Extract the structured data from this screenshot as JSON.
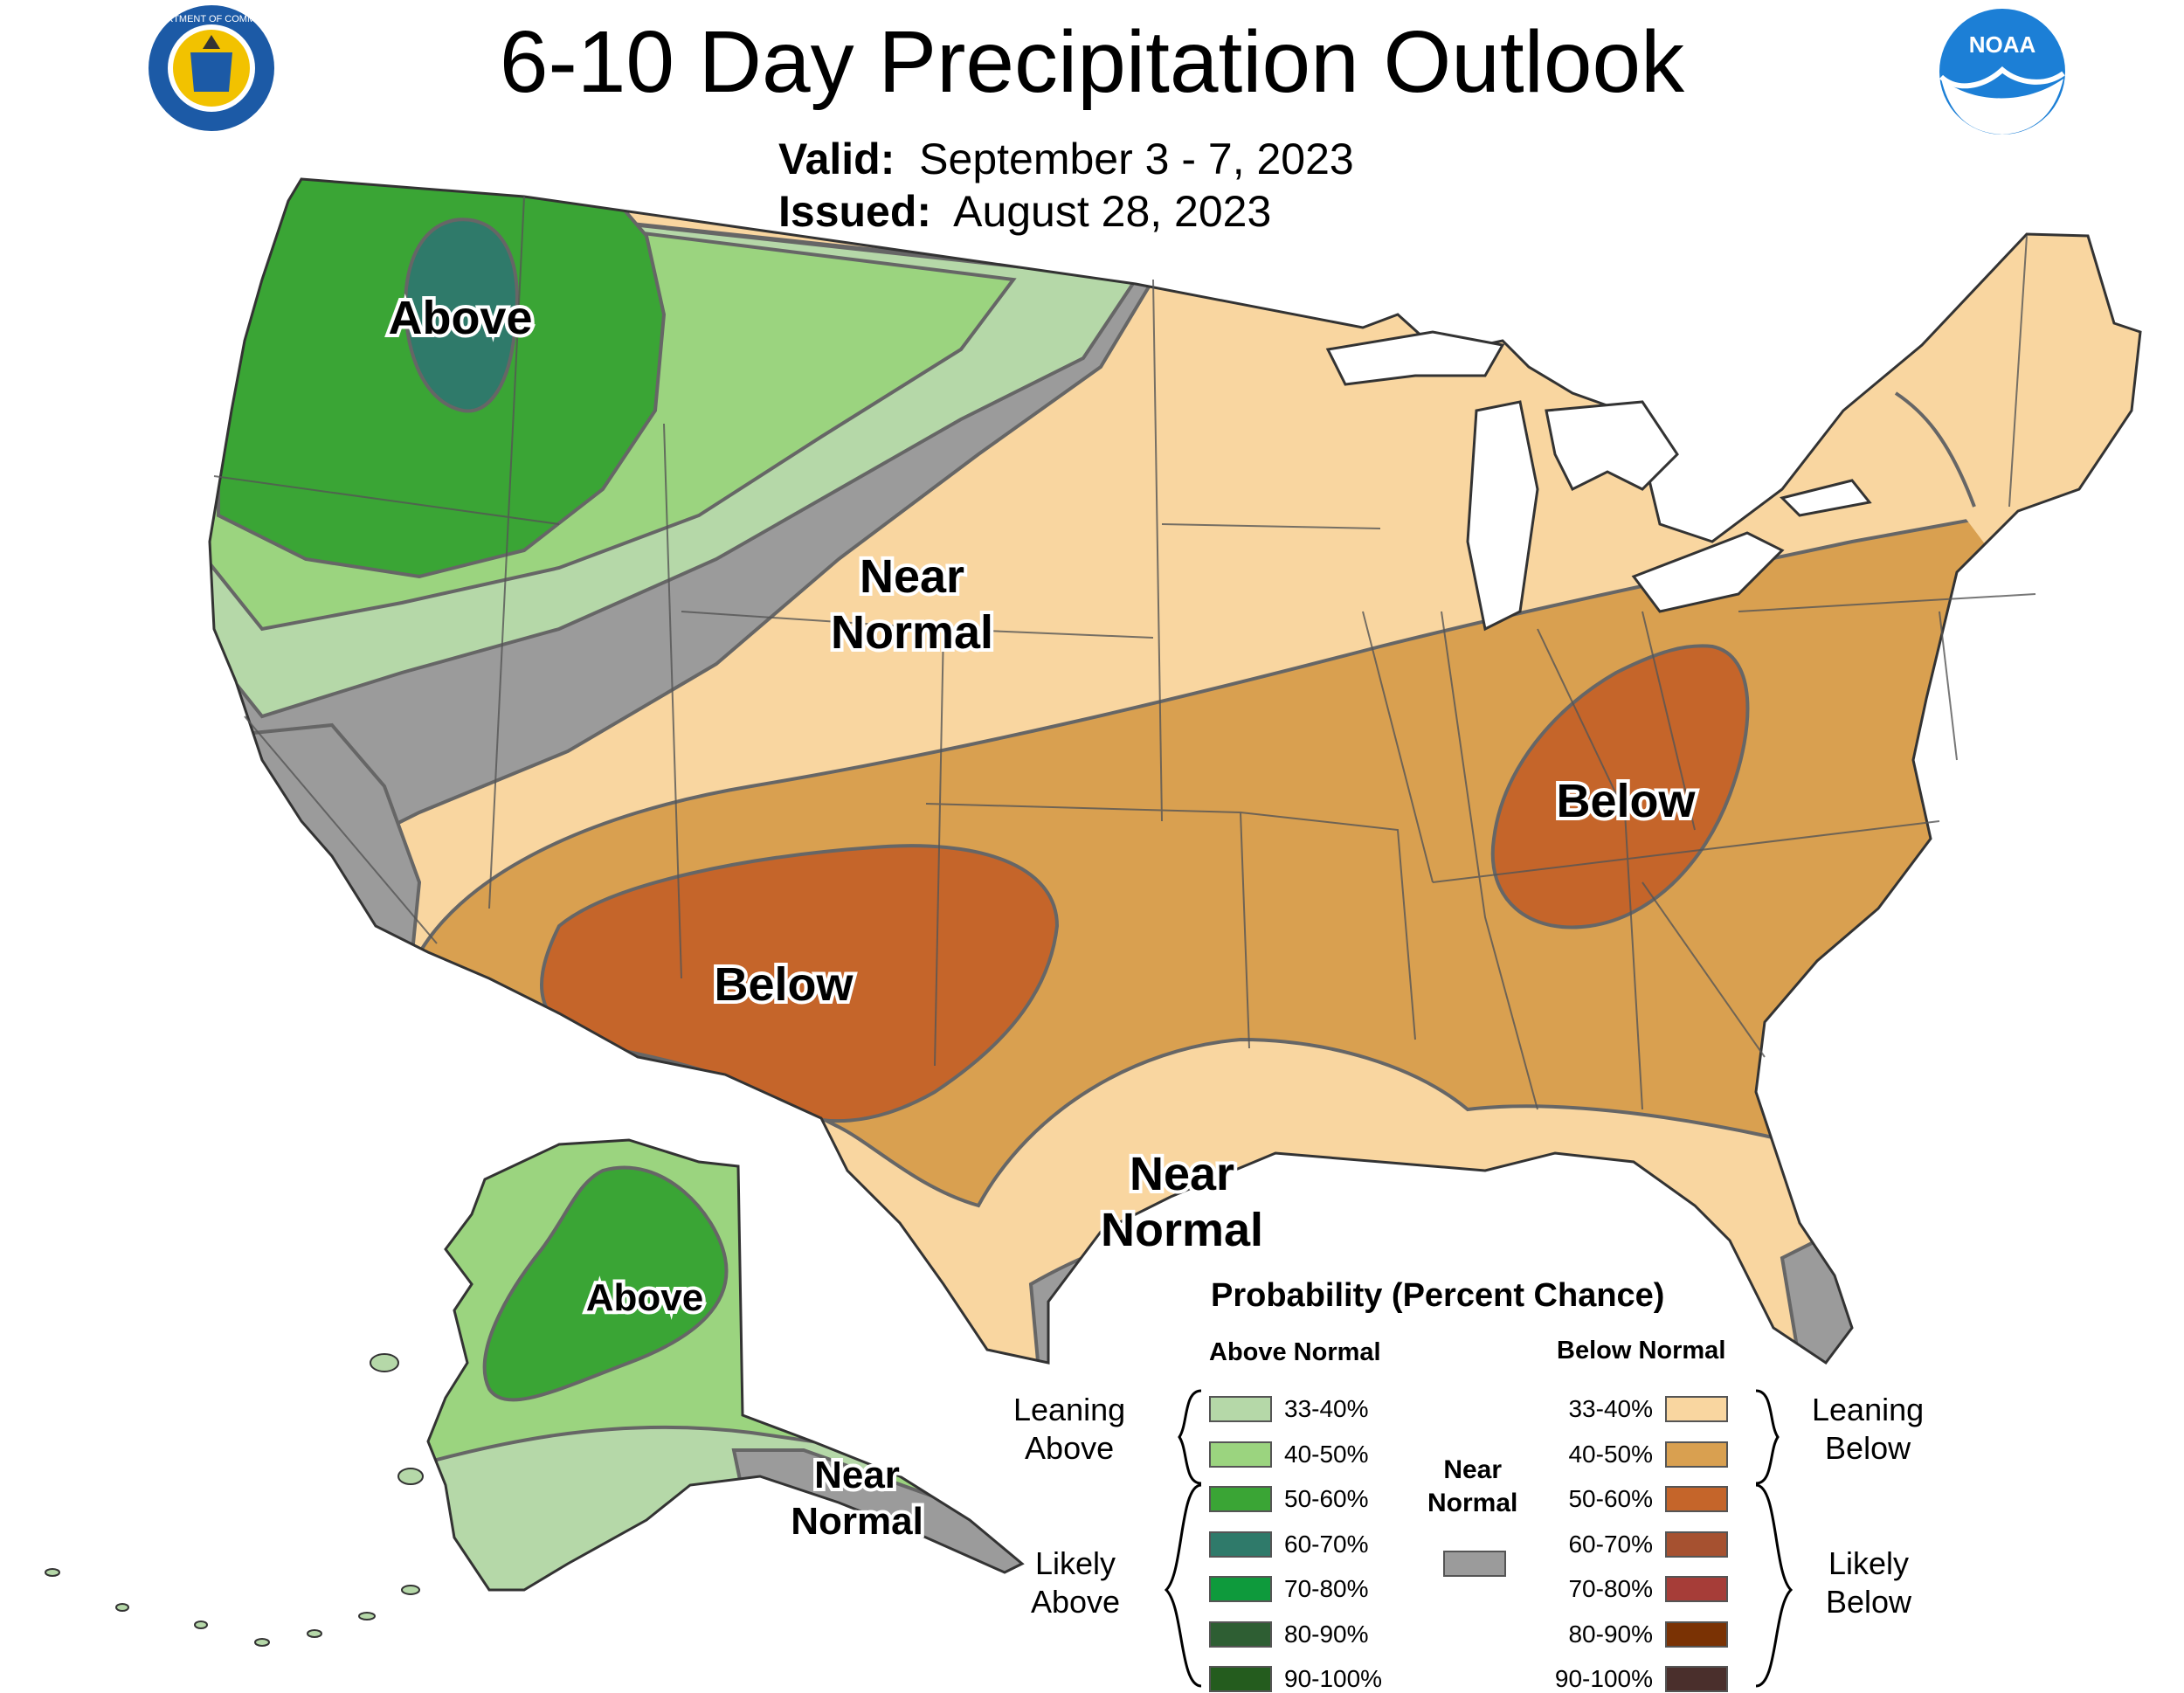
{
  "title": "6-10 Day Precipitation Outlook",
  "valid_label": "Valid:",
  "valid_dates": "September 3 - 7, 2023",
  "issued_label": "Issued:",
  "issued_date": "August 28, 2023",
  "logos": {
    "doc_seal": "Department of Commerce seal",
    "doc_seal_text": "DEPARTMENT OF COMMERCE · UNITED STATES OF AMERICA",
    "noaa_text": "NOAA"
  },
  "map_labels": {
    "nw_above": "Above",
    "central_near_1": "Near",
    "central_near_2": "Normal",
    "sw_below": "Below",
    "east_below": "Below",
    "gulf_near_1": "Near",
    "gulf_near_2": "Normal",
    "ak_above": "Above",
    "ak_near_1": "Near",
    "ak_near_2": "Normal"
  },
  "legend": {
    "title": "Probability (Percent Chance)",
    "above_head": "Above Normal",
    "below_head": "Below Normal",
    "near_head_1": "Near",
    "near_head_2": "Normal",
    "leaning_above_1": "Leaning",
    "leaning_above_2": "Above",
    "likely_above_1": "Likely",
    "likely_above_2": "Above",
    "leaning_below_1": "Leaning",
    "leaning_below_2": "Below",
    "likely_below_1": "Likely",
    "likely_below_2": "Below",
    "above": [
      {
        "label": "33-40%",
        "color": "#b5d8a8"
      },
      {
        "label": "40-50%",
        "color": "#9bd47f"
      },
      {
        "label": "50-60%",
        "color": "#3aa535"
      },
      {
        "label": "60-70%",
        "color": "#2f7a6a"
      },
      {
        "label": "70-80%",
        "color": "#0e9a3c"
      },
      {
        "label": "80-90%",
        "color": "#2e5e33"
      },
      {
        "label": "90-100%",
        "color": "#245c1e"
      }
    ],
    "below": [
      {
        "label": "33-40%",
        "color": "#f9d6a0"
      },
      {
        "label": "40-50%",
        "color": "#d9a050"
      },
      {
        "label": "50-60%",
        "color": "#c5652a"
      },
      {
        "label": "60-70%",
        "color": "#a65130"
      },
      {
        "label": "70-80%",
        "color": "#a63d38"
      },
      {
        "label": "80-90%",
        "color": "#7a3204"
      },
      {
        "label": "90-100%",
        "color": "#4a2f2c"
      }
    ],
    "near_color": "#9b9b9b"
  }
}
